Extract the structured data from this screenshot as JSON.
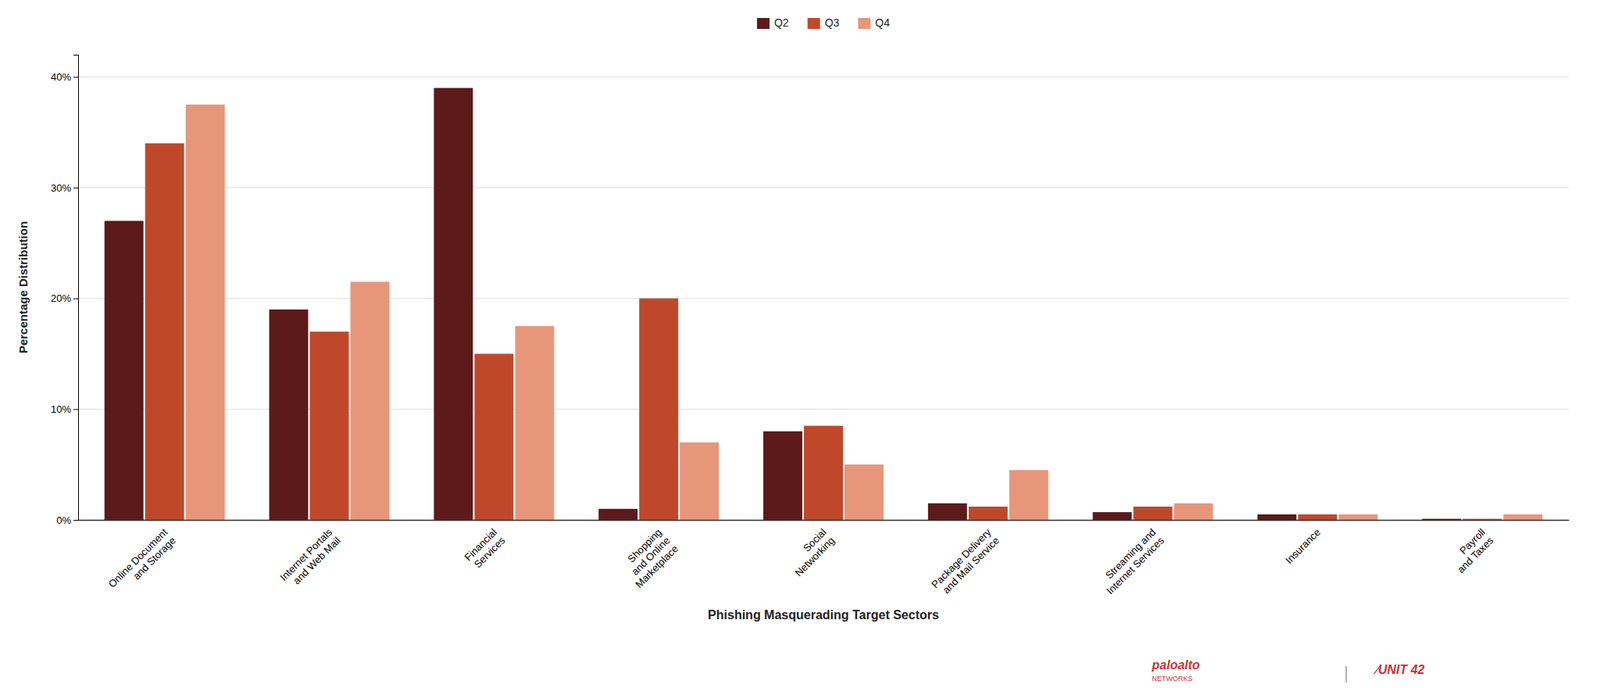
{
  "chart_data": {
    "type": "bar",
    "xlabel": "Phishing Masquerading Target Sectors",
    "ylabel": "Percentage Distribution",
    "categories": [
      "Online Document\nand Storage",
      "Internet Portals\nand Web Mail",
      "Financial\nServices",
      "Shopping\nand Online\nMarketplace",
      "Social\nNetworking",
      "Package Delivery\nand Mail Service",
      "Streaming and\nInternet Services",
      "Insurance",
      "Payroll\nand Taxes"
    ],
    "series": [
      {
        "name": "Q2",
        "color": "#5C1A1A",
        "values": [
          27.0,
          19.0,
          39.0,
          1.0,
          8.0,
          1.5,
          0.7,
          0.5,
          0.1
        ]
      },
      {
        "name": "Q3",
        "color": "#C0482A",
        "values": [
          34.0,
          17.0,
          15.0,
          20.0,
          8.5,
          1.2,
          1.2,
          0.5,
          0.1
        ]
      },
      {
        "name": "Q4",
        "color": "#E8967A",
        "values": [
          37.5,
          21.5,
          17.5,
          7.0,
          5.0,
          4.5,
          1.5,
          0.5,
          0.5
        ]
      }
    ],
    "ylim": [
      0,
      42
    ],
    "yticks": [
      {
        "value": 0,
        "label": "0%"
      },
      {
        "value": 10,
        "label": "10%"
      },
      {
        "value": 20,
        "label": "20%"
      },
      {
        "value": 30,
        "label": "30%"
      },
      {
        "value": 40,
        "label": "40%"
      }
    ],
    "grid": true,
    "legend": "top",
    "annotations": [
      "paloalto",
      "NETWORKS",
      "|",
      "∕UNIT 42"
    ]
  }
}
